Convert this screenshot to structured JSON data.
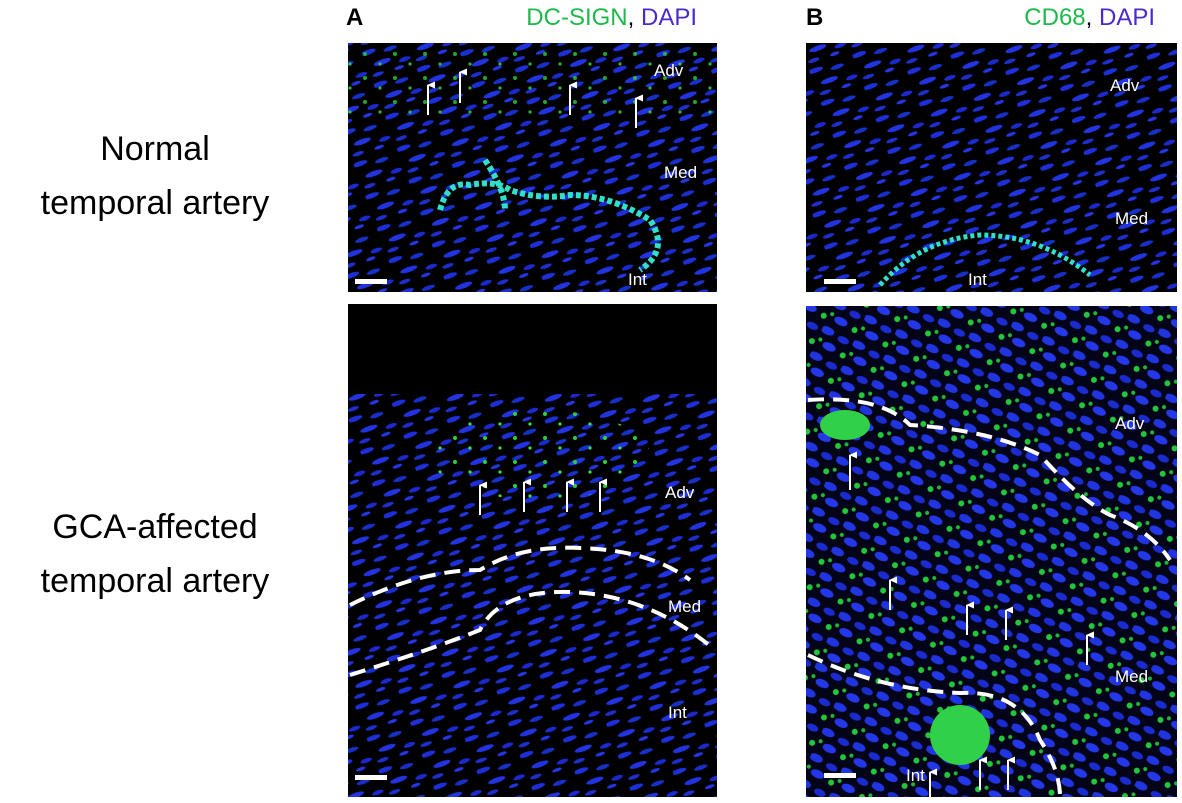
{
  "header": {
    "panel_a": {
      "letter": "A",
      "stain_1": "DC-SIGN",
      "separator": ",",
      "stain_2": "DAPI"
    },
    "panel_b": {
      "letter": "B",
      "stain_1": "CD68",
      "separator": ",",
      "stain_2": "DAPI"
    }
  },
  "rows": [
    {
      "label_lines": [
        "Normal",
        "temporal artery"
      ]
    },
    {
      "label_lines": [
        "GCA-affected",
        "temporal artery"
      ]
    }
  ],
  "panels": [
    {
      "layers": [
        "Adv",
        "Med",
        "Int"
      ]
    },
    {
      "layers": [
        "Adv",
        "Med",
        "Int"
      ]
    },
    {
      "layers": [
        "Adv",
        "Med",
        "Int"
      ]
    },
    {
      "layers": [
        "Adv",
        "Med",
        "Int"
      ]
    }
  ]
}
